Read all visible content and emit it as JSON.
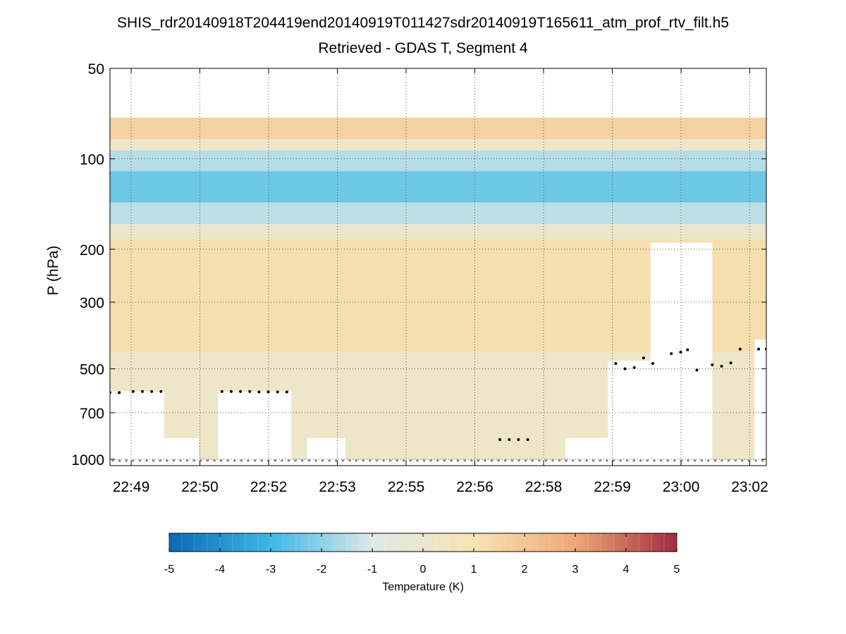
{
  "chart_data": {
    "type": "heatmap",
    "title": "SHIS_rdr20140918T204419end20140919T011427sdr20140919T165611_atm_prof_rtv_filt.h5",
    "subtitle": "Retrieved - GDAS T, Segment 4",
    "ylabel": "P (hPa)",
    "y_scale": "log",
    "y_reversed": true,
    "ylim": [
      50,
      1050
    ],
    "y_ticks": [
      50,
      100,
      200,
      300,
      500,
      700,
      1000
    ],
    "x_tick_labels": [
      "22:49",
      "22:50",
      "22:52",
      "22:53",
      "22:55",
      "22:56",
      "22:58",
      "22:59",
      "23:00",
      "23:02"
    ],
    "grid": true,
    "colorbar": {
      "label": "Temperature (K)",
      "range": [
        -5,
        5
      ],
      "ticks": [
        -5,
        -4,
        -3,
        -2,
        -1,
        0,
        1,
        2,
        3,
        4,
        5
      ],
      "colors": [
        "#0a69b2",
        "#3db8e8",
        "#dde9e6",
        "#f7e4b4",
        "#f0a777",
        "#a22a3f"
      ]
    },
    "data_top_pressure": 73,
    "x_time_range": [
      "22:48:30",
      "23:02:40"
    ],
    "layers": [
      {
        "p_top": 73,
        "p_bottom": 86,
        "value": 1.6
      },
      {
        "p_top": 86,
        "p_bottom": 94,
        "value": 0.3
      },
      {
        "p_top": 94,
        "p_bottom": 110,
        "value": -1.5
      },
      {
        "p_top": 110,
        "p_bottom": 140,
        "value": -2.4
      },
      {
        "p_top": 140,
        "p_bottom": 165,
        "value": -1.4
      },
      {
        "p_top": 165,
        "p_bottom": 185,
        "value": 0.1
      },
      {
        "p_top": 185,
        "p_bottom": 440,
        "value": 1.2
      },
      {
        "p_top": 440,
        "p_bottom": 1005,
        "value": 0.2
      }
    ],
    "blank_regions": [
      {
        "t_start": "22:48:30",
        "t_end": "22:49:40",
        "p_top": 595,
        "p_bottom": 1010
      },
      {
        "t_start": "22:49:40",
        "t_end": "22:50:25",
        "p_top": 850,
        "p_bottom": 1010
      },
      {
        "t_start": "22:50:50",
        "t_end": "22:52:25",
        "p_top": 595,
        "p_bottom": 1010
      },
      {
        "t_start": "22:52:45",
        "t_end": "22:53:35",
        "p_top": 850,
        "p_bottom": 1010
      },
      {
        "t_start": "22:58:20",
        "t_end": "22:59:15",
        "p_top": 850,
        "p_bottom": 1010
      },
      {
        "t_start": "22:59:15",
        "t_end": "23:01:30",
        "p_top": 470,
        "p_bottom": 1010
      },
      {
        "t_start": "23:00:10",
        "t_end": "23:01:30",
        "p_top": 190,
        "p_bottom": 470
      },
      {
        "t_start": "23:02:25",
        "t_end": "23:02:40",
        "p_top": 400,
        "p_bottom": 1010
      }
    ],
    "cloud_top_markers": [
      {
        "t": "22:48:30",
        "p": 600
      },
      {
        "t": "22:48:42",
        "p": 600
      },
      {
        "t": "22:49:00",
        "p": 595
      },
      {
        "t": "22:49:12",
        "p": 595
      },
      {
        "t": "22:49:24",
        "p": 595
      },
      {
        "t": "22:49:36",
        "p": 595
      },
      {
        "t": "22:50:55",
        "p": 595
      },
      {
        "t": "22:51:07",
        "p": 595
      },
      {
        "t": "22:51:19",
        "p": 595
      },
      {
        "t": "22:51:31",
        "p": 595
      },
      {
        "t": "22:51:43",
        "p": 597
      },
      {
        "t": "22:51:55",
        "p": 597
      },
      {
        "t": "22:52:07",
        "p": 597
      },
      {
        "t": "22:52:19",
        "p": 597
      },
      {
        "t": "22:56:55",
        "p": 860
      },
      {
        "t": "22:57:07",
        "p": 860
      },
      {
        "t": "22:57:19",
        "p": 860
      },
      {
        "t": "22:57:31",
        "p": 860
      },
      {
        "t": "22:59:25",
        "p": 480
      },
      {
        "t": "22:59:37",
        "p": 500
      },
      {
        "t": "22:59:49",
        "p": 495
      },
      {
        "t": "23:00:01",
        "p": 460
      },
      {
        "t": "23:00:13",
        "p": 480
      },
      {
        "t": "23:00:37",
        "p": 445
      },
      {
        "t": "23:00:49",
        "p": 440
      },
      {
        "t": "23:00:58",
        "p": 432
      },
      {
        "t": "23:01:10",
        "p": 505
      },
      {
        "t": "23:01:30",
        "p": 485
      },
      {
        "t": "23:01:42",
        "p": 490
      },
      {
        "t": "23:01:54",
        "p": 478
      },
      {
        "t": "23:02:06",
        "p": 430
      },
      {
        "t": "23:02:30",
        "p": 430
      },
      {
        "t": "23:02:40",
        "p": 430
      }
    ],
    "surface_marker_pressure": 1010
  }
}
